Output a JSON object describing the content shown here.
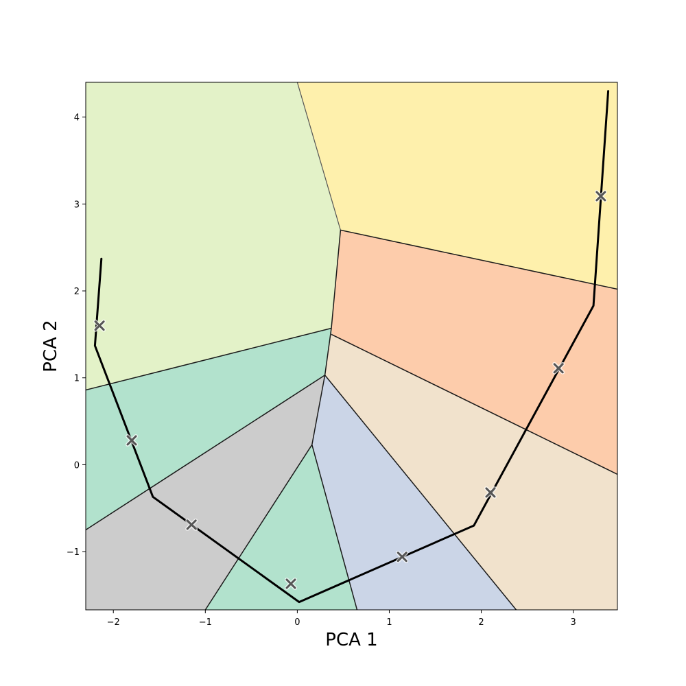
{
  "chart_data": {
    "type": "scatter",
    "title": "",
    "xlabel": "PCA 1",
    "ylabel": "PCA 2",
    "xlim": [
      -2.3,
      3.48
    ],
    "ylim": [
      -1.67,
      4.4
    ],
    "x_ticks": [
      -2,
      -1,
      0,
      1,
      2,
      3
    ],
    "y_ticks": [
      -1,
      0,
      1,
      2,
      3,
      4
    ],
    "x_tick_labels": [
      "−2",
      "−1",
      "0",
      "1",
      "2",
      "3"
    ],
    "y_tick_labels": [
      "−1",
      "0",
      "1",
      "2",
      "3",
      "4"
    ],
    "grid": false,
    "markers": {
      "symbol": "x",
      "color": "#555555",
      "points": [
        {
          "x": -2.15,
          "y": 1.6
        },
        {
          "x": -1.8,
          "y": 0.28
        },
        {
          "x": -1.15,
          "y": -0.69
        },
        {
          "x": -0.07,
          "y": -1.37
        },
        {
          "x": 1.14,
          "y": -1.06
        },
        {
          "x": 2.1,
          "y": -0.32
        },
        {
          "x": 2.84,
          "y": 1.11
        },
        {
          "x": 3.3,
          "y": 3.09
        }
      ]
    },
    "trajectory": {
      "color": "#000000",
      "points": [
        {
          "x": -2.13,
          "y": 2.37
        },
        {
          "x": -2.2,
          "y": 1.37
        },
        {
          "x": -1.57,
          "y": -0.37
        },
        {
          "x": 0.02,
          "y": -1.58
        },
        {
          "x": 1.92,
          "y": -0.7
        },
        {
          "x": 3.22,
          "y": 1.83
        },
        {
          "x": 3.38,
          "y": 4.3
        }
      ]
    },
    "regions": [
      {
        "color": "#e3f2c8",
        "polygon": [
          [
            -2.3,
            4.4
          ],
          [
            0.0,
            4.4
          ],
          [
            0.47,
            2.7
          ],
          [
            0.37,
            1.57
          ],
          [
            -2.3,
            0.86
          ]
        ]
      },
      {
        "color": "#fef0ac",
        "polygon": [
          [
            0.0,
            4.4
          ],
          [
            3.48,
            4.4
          ],
          [
            3.48,
            2.02
          ],
          [
            0.47,
            2.7
          ]
        ]
      },
      {
        "color": "#fdccab",
        "polygon": [
          [
            0.47,
            2.7
          ],
          [
            3.48,
            2.02
          ],
          [
            3.48,
            -0.11
          ],
          [
            0.37,
            1.5
          ]
        ]
      },
      {
        "color": "#b2e2cd",
        "polygon": [
          [
            -2.3,
            0.86
          ],
          [
            0.37,
            1.57
          ],
          [
            0.37,
            1.5
          ],
          [
            0.3,
            1.03
          ],
          [
            -2.3,
            -0.75
          ]
        ]
      },
      {
        "color": "#cccccc",
        "polygon": [
          [
            -2.3,
            -0.75
          ],
          [
            0.3,
            1.03
          ],
          [
            0.16,
            0.23
          ],
          [
            -1.0,
            -1.67
          ],
          [
            -2.3,
            -1.67
          ]
        ]
      },
      {
        "color": "#b2e2cd",
        "polygon": [
          [
            0.16,
            0.23
          ],
          [
            0.65,
            -1.67
          ],
          [
            -1.0,
            -1.67
          ]
        ]
      },
      {
        "color": "#cbd5e7",
        "polygon": [
          [
            0.3,
            1.03
          ],
          [
            0.16,
            0.23
          ],
          [
            0.65,
            -1.67
          ],
          [
            2.38,
            -1.67
          ]
        ]
      },
      {
        "color": "#f1e2cc",
        "polygon": [
          [
            0.37,
            1.5
          ],
          [
            3.48,
            -0.11
          ],
          [
            3.48,
            -1.67
          ],
          [
            2.38,
            -1.67
          ],
          [
            0.3,
            1.03
          ]
        ]
      }
    ],
    "edges": [
      {
        "style": "faint",
        "points": [
          [
            0.0,
            4.4
          ],
          [
            0.47,
            2.7
          ]
        ]
      },
      {
        "style": "dark",
        "points": [
          [
            0.47,
            2.7
          ],
          [
            3.48,
            2.02
          ]
        ]
      },
      {
        "style": "dark",
        "points": [
          [
            0.47,
            2.7
          ],
          [
            0.37,
            1.57
          ]
        ]
      },
      {
        "style": "dark",
        "points": [
          [
            0.37,
            1.57
          ],
          [
            -2.3,
            0.86
          ]
        ]
      },
      {
        "style": "dark",
        "points": [
          [
            0.37,
            1.57
          ],
          [
            0.3,
            1.03
          ]
        ]
      },
      {
        "style": "dark",
        "points": [
          [
            0.37,
            1.5
          ],
          [
            3.48,
            -0.11
          ]
        ]
      },
      {
        "style": "dark",
        "points": [
          [
            0.3,
            1.03
          ],
          [
            -2.3,
            -0.75
          ]
        ]
      },
      {
        "style": "dark",
        "points": [
          [
            0.3,
            1.03
          ],
          [
            0.16,
            0.23
          ]
        ]
      },
      {
        "style": "dark",
        "points": [
          [
            0.3,
            1.03
          ],
          [
            2.38,
            -1.67
          ]
        ]
      },
      {
        "style": "dark",
        "points": [
          [
            0.16,
            0.23
          ],
          [
            -1.0,
            -1.67
          ]
        ]
      },
      {
        "style": "dark",
        "points": [
          [
            0.16,
            0.23
          ],
          [
            0.65,
            -1.67
          ]
        ]
      }
    ]
  }
}
